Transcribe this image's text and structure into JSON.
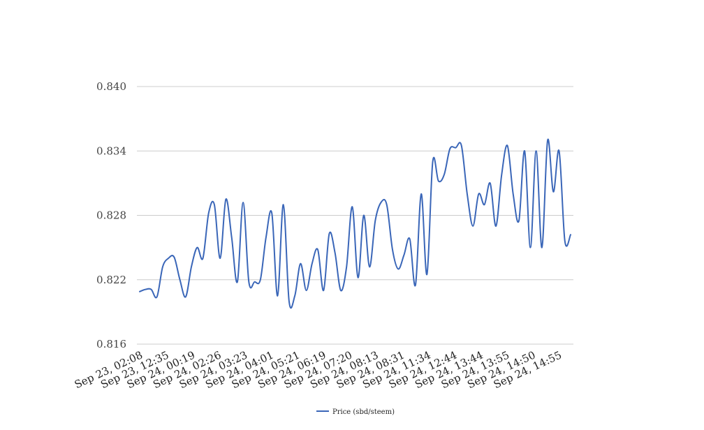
{
  "chart_data": {
    "type": "line",
    "title": "",
    "xlabel": "",
    "ylabel": "",
    "ylim": [
      0.816,
      0.84
    ],
    "y_ticks": [
      "0.816",
      "0.822",
      "0.828",
      "0.834",
      "0.840"
    ],
    "y_tick_values": [
      0.816,
      0.822,
      0.828,
      0.834,
      0.84
    ],
    "x_tick_labels": [
      "Sep 23, 02:08",
      "Sep 23, 12:35",
      "Sep 24, 00:19",
      "Sep 24, 02:26",
      "Sep 24, 03:23",
      "Sep 24, 04:01",
      "Sep 24, 05:21",
      "Sep 24, 06:19",
      "Sep 24, 07:20",
      "Sep 24, 08:13",
      "Sep 24, 08:31",
      "Sep 24, 11:34",
      "Sep 24, 12:44",
      "Sep 24, 13:44",
      "Sep 24, 13:55",
      "Sep 24, 14:50",
      "Sep 24, 14:55"
    ],
    "grid": true,
    "legend_position": "bottom-center",
    "series": [
      {
        "name": "Price (sbd/steem)",
        "color": "#3a66b8",
        "values": [
          0.8209,
          0.8211,
          0.8211,
          0.8204,
          0.8232,
          0.824,
          0.8241,
          0.822,
          0.8204,
          0.8232,
          0.825,
          0.824,
          0.8282,
          0.829,
          0.824,
          0.8295,
          0.826,
          0.8218,
          0.8292,
          0.8218,
          0.8218,
          0.822,
          0.826,
          0.8282,
          0.8205,
          0.829,
          0.82,
          0.8205,
          0.8235,
          0.821,
          0.8235,
          0.8248,
          0.821,
          0.8263,
          0.8245,
          0.821,
          0.8232,
          0.8288,
          0.8222,
          0.828,
          0.8232,
          0.8275,
          0.8292,
          0.829,
          0.8248,
          0.823,
          0.8243,
          0.8258,
          0.8215,
          0.83,
          0.8225,
          0.833,
          0.8312,
          0.8318,
          0.8342,
          0.8343,
          0.8345,
          0.83,
          0.827,
          0.83,
          0.829,
          0.831,
          0.827,
          0.8318,
          0.8345,
          0.83,
          0.8275,
          0.834,
          0.825,
          0.834,
          0.825,
          0.835,
          0.8302,
          0.834,
          0.8256,
          0.8262
        ]
      }
    ]
  },
  "legend": {
    "label": "Price (sbd/steem)"
  }
}
